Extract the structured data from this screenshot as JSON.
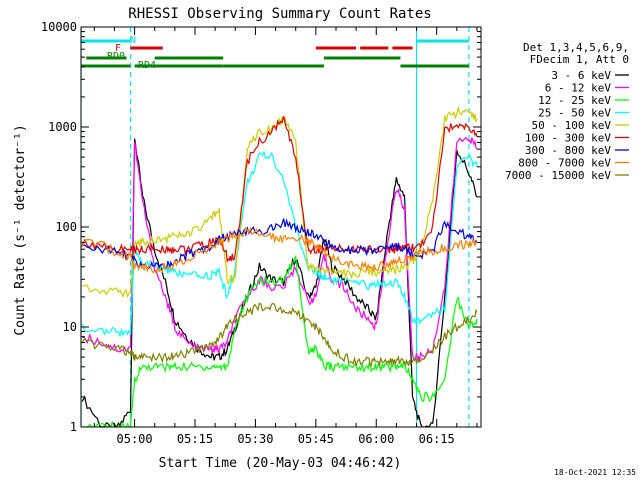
{
  "chart_data": {
    "type": "line",
    "title": "RHESSI Observing Summary Count Rates",
    "xlabel": "Start Time (20-May-03 04:46:42)",
    "ylabel": "Count Rate (s⁻¹ detector⁻¹)",
    "y_scale": "log",
    "ylim": [
      1,
      10000
    ],
    "xlim": [
      "04:46:42",
      "06:26:00"
    ],
    "grid": false,
    "legend_position": "right",
    "timestamp": "18-Oct-2021 12:35",
    "x_ticks": [
      "05:00",
      "05:15",
      "05:30",
      "05:45",
      "06:00",
      "06:15"
    ],
    "y_ticks": [
      "1",
      "10",
      "100",
      "1000",
      "10000"
    ],
    "legend_header": [
      "Det 1,3,4,5,6,9,",
      "FDecim 1, Att 0"
    ],
    "flags": [
      {
        "label": "N",
        "color": "#00e5ee",
        "intervals": [
          [
            "04:46:42",
            "04:59:00"
          ],
          [
            "06:10:00",
            "06:23:00"
          ]
        ]
      },
      {
        "label": "F",
        "color": "#dd0000",
        "intervals": [
          [
            "04:59:00",
            "05:07:00"
          ],
          [
            "05:45:00",
            "05:55:00"
          ],
          [
            "05:56:00",
            "06:03:00"
          ],
          [
            "06:04:00",
            "06:09:00"
          ]
        ]
      },
      {
        "label": "RD0",
        "color": "#008000",
        "intervals": [
          [
            "04:48:00",
            "04:58:00"
          ],
          [
            "05:05:00",
            "05:22:00"
          ],
          [
            "05:47:00",
            "06:06:00"
          ]
        ]
      },
      {
        "label": "RD4",
        "color": "#008000",
        "intervals": [
          [
            "04:46:42",
            "04:59:00"
          ],
          [
            "05:00:00",
            "05:22:00"
          ],
          [
            "05:22:00",
            "05:47:00"
          ],
          [
            "06:06:00",
            "06:23:00"
          ]
        ]
      }
    ],
    "vertical_markers": [
      {
        "time": "04:46:42",
        "style": "solid"
      },
      {
        "time": "04:59:00",
        "style": "dashed"
      },
      {
        "time": "06:10:00",
        "style": "solid"
      },
      {
        "time": "06:23:00",
        "style": "dashed"
      }
    ],
    "x_times": [
      "04:47",
      "04:52",
      "04:56",
      "04:59",
      "05:00",
      "05:02",
      "05:05",
      "05:08",
      "05:10",
      "05:13",
      "05:16",
      "05:19",
      "05:21",
      "05:23",
      "05:25",
      "05:28",
      "05:31",
      "05:34",
      "05:37",
      "05:40",
      "05:43",
      "05:45",
      "05:47",
      "05:49",
      "05:52",
      "05:55",
      "05:58",
      "06:00",
      "06:03",
      "06:05",
      "06:07",
      "06:09",
      "06:11",
      "06:14",
      "06:17",
      "06:20",
      "06:23",
      "06:25"
    ],
    "series": [
      {
        "name": "3 - 6 keV",
        "color": "#000000",
        "values": [
          2,
          1,
          1,
          1.5,
          800,
          200,
          60,
          25,
          12,
          8,
          6,
          5,
          5,
          6,
          10,
          20,
          40,
          30,
          28,
          50,
          20,
          25,
          80,
          40,
          30,
          20,
          15,
          12,
          100,
          300,
          200,
          2,
          1,
          1,
          20,
          600,
          350,
          200
        ]
      },
      {
        "name": "6 - 12 keV",
        "color": "#ff00ff",
        "values": [
          8,
          7,
          6,
          6,
          700,
          180,
          40,
          18,
          10,
          7,
          6,
          6,
          6,
          7,
          12,
          20,
          30,
          25,
          25,
          40,
          18,
          20,
          50,
          30,
          25,
          15,
          12,
          10,
          80,
          250,
          150,
          5,
          5,
          6,
          25,
          700,
          800,
          600
        ]
      },
      {
        "name": "12 - 25 keV",
        "color": "#00ff00",
        "values": [
          1,
          1,
          1,
          1,
          3,
          4,
          4,
          4,
          4,
          4,
          4,
          4,
          4,
          4,
          10,
          20,
          30,
          28,
          30,
          50,
          6,
          6,
          4,
          4,
          4,
          4,
          4,
          4,
          4,
          4,
          4,
          3,
          2,
          2,
          3,
          20,
          10,
          12
        ]
      },
      {
        "name": "25 - 50 keV",
        "color": "#00ffff",
        "values": [
          10,
          9,
          9,
          9,
          60,
          45,
          40,
          38,
          35,
          33,
          32,
          33,
          35,
          20,
          40,
          280,
          500,
          520,
          300,
          100,
          40,
          35,
          32,
          30,
          28,
          27,
          26,
          27,
          28,
          28,
          20,
          12,
          12,
          14,
          15,
          400,
          500,
          400
        ]
      },
      {
        "name": "50 - 100 keV",
        "color": "#cccc00",
        "values": [
          25,
          24,
          22,
          22,
          70,
          72,
          75,
          78,
          80,
          85,
          95,
          120,
          150,
          30,
          30,
          650,
          900,
          1000,
          1200,
          700,
          40,
          38,
          36,
          35,
          34,
          34,
          35,
          36,
          38,
          38,
          40,
          45,
          60,
          180,
          1200,
          1400,
          1500,
          1200
        ]
      },
      {
        "name": "100 - 300 keV",
        "color": "#dd0000",
        "values": [
          70,
          65,
          60,
          60,
          60,
          60,
          60,
          60,
          60,
          60,
          65,
          70,
          75,
          50,
          50,
          450,
          700,
          900,
          1200,
          500,
          60,
          60,
          60,
          60,
          60,
          60,
          60,
          60,
          60,
          60,
          60,
          62,
          65,
          100,
          900,
          1100,
          1000,
          800
        ]
      },
      {
        "name": "300 - 800 keV",
        "color": "#0000dd",
        "values": [
          65,
          60,
          55,
          52,
          45,
          42,
          40,
          42,
          45,
          52,
          58,
          65,
          75,
          80,
          85,
          88,
          92,
          95,
          110,
          100,
          88,
          80,
          72,
          65,
          60,
          58,
          58,
          60,
          62,
          65,
          60,
          55,
          52,
          58,
          110,
          90,
          80,
          70
        ]
      },
      {
        "name": "800 - 7000 keV",
        "color": "#ff8000",
        "values": [
          70,
          65,
          55,
          50,
          42,
          40,
          38,
          40,
          42,
          48,
          55,
          62,
          70,
          78,
          85,
          90,
          85,
          80,
          78,
          80,
          72,
          65,
          55,
          48,
          45,
          42,
          40,
          40,
          42,
          45,
          48,
          52,
          55,
          58,
          62,
          66,
          68,
          70
        ]
      },
      {
        "name": "7000 - 15000 keV",
        "color": "#808000",
        "values": [
          7,
          6.5,
          6,
          5.5,
          5,
          5,
          5,
          5,
          5,
          5.5,
          6,
          6.5,
          8,
          10,
          12,
          14,
          16,
          16,
          15,
          14,
          12,
          10,
          8,
          6,
          5,
          4.5,
          4.5,
          4.5,
          4.5,
          4.5,
          4.5,
          4.5,
          5,
          6,
          8,
          10,
          12,
          14
        ]
      }
    ]
  }
}
